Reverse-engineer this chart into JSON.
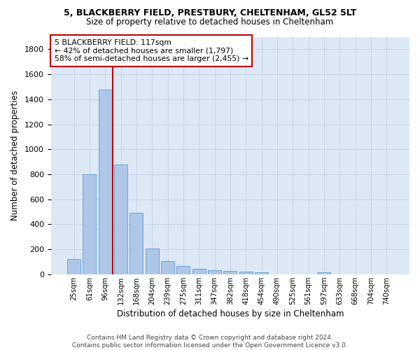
{
  "title_line1": "5, BLACKBERRY FIELD, PRESTBURY, CHELTENHAM, GL52 5LT",
  "title_line2": "Size of property relative to detached houses in Cheltenham",
  "xlabel": "Distribution of detached houses by size in Cheltenham",
  "ylabel": "Number of detached properties",
  "footnote": "Contains HM Land Registry data © Crown copyright and database right 2024.\nContains public sector information licensed under the Open Government Licence v3.0.",
  "categories": [
    "25sqm",
    "61sqm",
    "96sqm",
    "132sqm",
    "168sqm",
    "204sqm",
    "239sqm",
    "275sqm",
    "311sqm",
    "347sqm",
    "382sqm",
    "418sqm",
    "454sqm",
    "490sqm",
    "525sqm",
    "561sqm",
    "597sqm",
    "633sqm",
    "668sqm",
    "704sqm",
    "740sqm"
  ],
  "values": [
    125,
    800,
    1480,
    880,
    490,
    205,
    105,
    65,
    45,
    35,
    30,
    20,
    15,
    0,
    0,
    0,
    15,
    0,
    0,
    0,
    0
  ],
  "bar_color": "#aec6e8",
  "bar_edgecolor": "#5a9fd4",
  "annotation_line_color": "#c00000",
  "annotation_box_edgecolor": "#c00000",
  "property_label": "5 BLACKBERRY FIELD: 117sqm",
  "smaller_pct": "42%",
  "smaller_count": "1,797",
  "larger_pct": "58%",
  "larger_count": "2,455",
  "ylim": [
    0,
    1900
  ],
  "yticks": [
    0,
    200,
    400,
    600,
    800,
    1000,
    1200,
    1400,
    1600,
    1800
  ],
  "axes_facecolor": "#dde8f5",
  "background_color": "#ffffff",
  "grid_color": "#c8d4e8"
}
